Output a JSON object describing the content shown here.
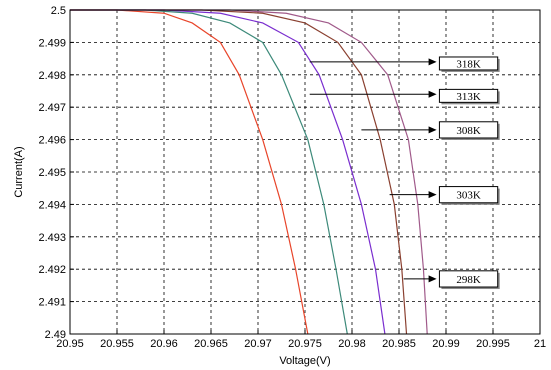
{
  "chart_data": {
    "type": "line",
    "title": "",
    "xlabel": "Voltage(V)",
    "ylabel": "Current(A)",
    "xlim": [
      20.95,
      21.0
    ],
    "ylim": [
      2.49,
      2.5
    ],
    "grid": true,
    "x_ticks": [
      "20.95",
      "20.955",
      "20.96",
      "20.965",
      "20.97",
      "20.975",
      "20.98",
      "20.985",
      "20.99",
      "20.995",
      "21"
    ],
    "y_ticks": [
      "2.49",
      "2.491",
      "2.492",
      "2.493",
      "2.494",
      "2.495",
      "2.496",
      "2.497",
      "2.498",
      "2.499",
      "2.5"
    ],
    "series": [
      {
        "color": "#e8452a",
        "points": [
          [
            20.95,
            2.5
          ],
          [
            20.955,
            2.5
          ],
          [
            20.96,
            2.4999
          ],
          [
            20.963,
            2.4996
          ],
          [
            20.966,
            2.499
          ],
          [
            20.968,
            2.498
          ],
          [
            20.9705,
            2.496
          ],
          [
            20.9725,
            2.494
          ],
          [
            20.974,
            2.492
          ],
          [
            20.9753,
            2.49
          ]
        ]
      },
      {
        "color": "#3d8a7a",
        "points": [
          [
            20.95,
            2.5
          ],
          [
            20.958,
            2.5
          ],
          [
            20.963,
            2.4999
          ],
          [
            20.967,
            2.4996
          ],
          [
            20.9705,
            2.499
          ],
          [
            20.9725,
            2.498
          ],
          [
            20.9753,
            2.496
          ],
          [
            20.977,
            2.494
          ],
          [
            20.9783,
            2.492
          ],
          [
            20.9795,
            2.49
          ]
        ]
      },
      {
        "color": "#7a2ecf",
        "points": [
          [
            20.95,
            2.5
          ],
          [
            20.96,
            2.5
          ],
          [
            20.966,
            2.4999
          ],
          [
            20.9705,
            2.4996
          ],
          [
            20.9743,
            2.499
          ],
          [
            20.9765,
            2.498
          ],
          [
            20.979,
            2.496
          ],
          [
            20.981,
            2.494
          ],
          [
            20.9825,
            2.492
          ],
          [
            20.9835,
            2.49
          ]
        ]
      },
      {
        "color": "#8a4030",
        "points": [
          [
            20.95,
            2.5
          ],
          [
            20.964,
            2.5
          ],
          [
            20.9705,
            2.4999
          ],
          [
            20.975,
            2.4996
          ],
          [
            20.9785,
            2.499
          ],
          [
            20.981,
            2.498
          ],
          [
            20.983,
            2.496
          ],
          [
            20.9845,
            2.494
          ],
          [
            20.9853,
            2.492
          ],
          [
            20.9858,
            2.49
          ]
        ]
      },
      {
        "color": "#a05a8a",
        "points": [
          [
            20.95,
            2.5
          ],
          [
            20.967,
            2.5
          ],
          [
            20.973,
            2.4999
          ],
          [
            20.9775,
            2.4996
          ],
          [
            20.981,
            2.499
          ],
          [
            20.9838,
            2.498
          ],
          [
            20.986,
            2.496
          ],
          [
            20.987,
            2.494
          ],
          [
            20.9876,
            2.492
          ],
          [
            20.988,
            2.49
          ]
        ]
      }
    ],
    "annotations": [
      {
        "label": "318K",
        "arrow_from": [
          20.9755,
          2.4984
        ],
        "arrow_to": [
          20.989,
          2.4984
        ],
        "box_x": [
          20.9893,
          20.9955
        ],
        "box_y": [
          2.49855,
          2.49815
        ]
      },
      {
        "label": "313K",
        "arrow_from": [
          20.9755,
          2.4974
        ],
        "arrow_to": [
          20.989,
          2.4974
        ],
        "box_x": [
          20.9893,
          20.9955
        ],
        "box_y": [
          2.49755,
          2.49715
        ]
      },
      {
        "label": "308K",
        "arrow_from": [
          20.981,
          2.4963
        ],
        "arrow_to": [
          20.989,
          2.4963
        ],
        "box_x": [
          20.9893,
          20.9955
        ],
        "box_y": [
          2.49655,
          2.49605
        ]
      },
      {
        "label": "303K",
        "arrow_from": [
          20.984,
          2.4943
        ],
        "arrow_to": [
          20.989,
          2.4943
        ],
        "box_x": [
          20.9893,
          20.9955
        ],
        "box_y": [
          2.49455,
          2.49405
        ]
      },
      {
        "label": "298K",
        "arrow_from": [
          20.9855,
          2.4917
        ],
        "arrow_to": [
          20.989,
          2.4917
        ],
        "box_x": [
          20.9893,
          20.9955
        ],
        "box_y": [
          2.49195,
          2.49145
        ]
      }
    ]
  }
}
